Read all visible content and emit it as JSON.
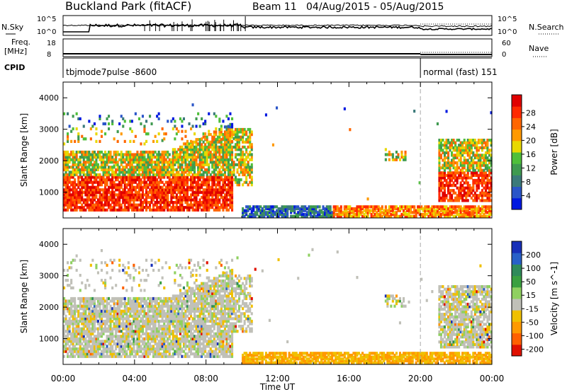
{
  "title": {
    "station": "Buckland Park (fitACF)",
    "beam": "Beam 11",
    "dates": "04/Aug/2015 - 05/Aug/2015"
  },
  "top_panels": {
    "nsky_label": "N.Sky",
    "nsearch_label": "N.Search",
    "noise_ticks": [
      "10^5",
      "10^0"
    ],
    "freq_label": "Freq.",
    "freq_unit": "[MHz]",
    "freq_ticks": [
      "18",
      "8"
    ],
    "nave_label": "Nave",
    "nave_ticks": [
      "60",
      "0"
    ],
    "cpid_label": "CPID",
    "cpid_segments": [
      {
        "name": "tbjmode7pulse -8600",
        "start_hour": 0,
        "end_hour": 20
      },
      {
        "name": "normal (fast) 151",
        "start_hour": 20,
        "end_hour": 24
      }
    ]
  },
  "x_axis": {
    "label": "Time UT",
    "ticks": [
      "00:00",
      "04:00",
      "08:00",
      "12:00",
      "16:00",
      "20:00",
      "00:00"
    ],
    "range_hours": [
      0,
      24
    ]
  },
  "y_axis": {
    "label": "Slant Range [km]",
    "ticks": [
      "1000",
      "2000",
      "3000",
      "4000"
    ],
    "range_km": [
      180,
      4500
    ]
  },
  "chart_data": [
    {
      "type": "heatmap",
      "title": "Power",
      "colorbar_label": "Power [dB]",
      "colorbar_ticks": [
        "4",
        "8",
        "12",
        "16",
        "20",
        "24",
        "28"
      ],
      "colors": [
        "#0018e0",
        "#2a55c8",
        "#3b7a7a",
        "#3f9a50",
        "#4fbf3a",
        "#e8d800",
        "#ff9900",
        "#ff6600",
        "#ff2a00",
        "#e00000"
      ],
      "regions": [
        {
          "x": [
            0,
            9.5
          ],
          "y": [
            300,
            1500
          ],
          "level": "high"
        },
        {
          "x": [
            0,
            9.5
          ],
          "y": [
            1500,
            2300
          ],
          "level": "medium"
        },
        {
          "x": [
            9.5,
            10.5
          ],
          "y": [
            1200,
            2800
          ],
          "level": "medium"
        },
        {
          "x": [
            10,
            24
          ],
          "y": [
            200,
            500
          ],
          "level": "mixed"
        },
        {
          "x": [
            18,
            19.2
          ],
          "y": [
            2000,
            2400
          ],
          "level": "low"
        },
        {
          "x": [
            21,
            24
          ],
          "y": [
            700,
            2700
          ],
          "level": "high"
        }
      ]
    },
    {
      "type": "heatmap",
      "title": "Velocity",
      "colorbar_label": "Velocity [m s^-1]",
      "colorbar_ticks": [
        "200",
        "100",
        "50",
        "15",
        "-15",
        "-50",
        "-100",
        "-200"
      ],
      "colors": [
        "#1830b8",
        "#2860c8",
        "#2f8a5a",
        "#3aa040",
        "#8fd060",
        "#c0c0b8",
        "#f0c000",
        "#ff9900",
        "#ff6000",
        "#e01000"
      ],
      "regions": [
        {
          "x": [
            0,
            10.5
          ],
          "y": [
            300,
            3500
          ],
          "level": "near-zero"
        },
        {
          "x": [
            10,
            24
          ],
          "y": [
            200,
            600
          ],
          "level": "negative"
        },
        {
          "x": [
            18,
            19.2
          ],
          "y": [
            2000,
            2400
          ],
          "level": "near-zero"
        },
        {
          "x": [
            21,
            24
          ],
          "y": [
            700,
            2700
          ],
          "level": "near-zero"
        }
      ]
    }
  ]
}
